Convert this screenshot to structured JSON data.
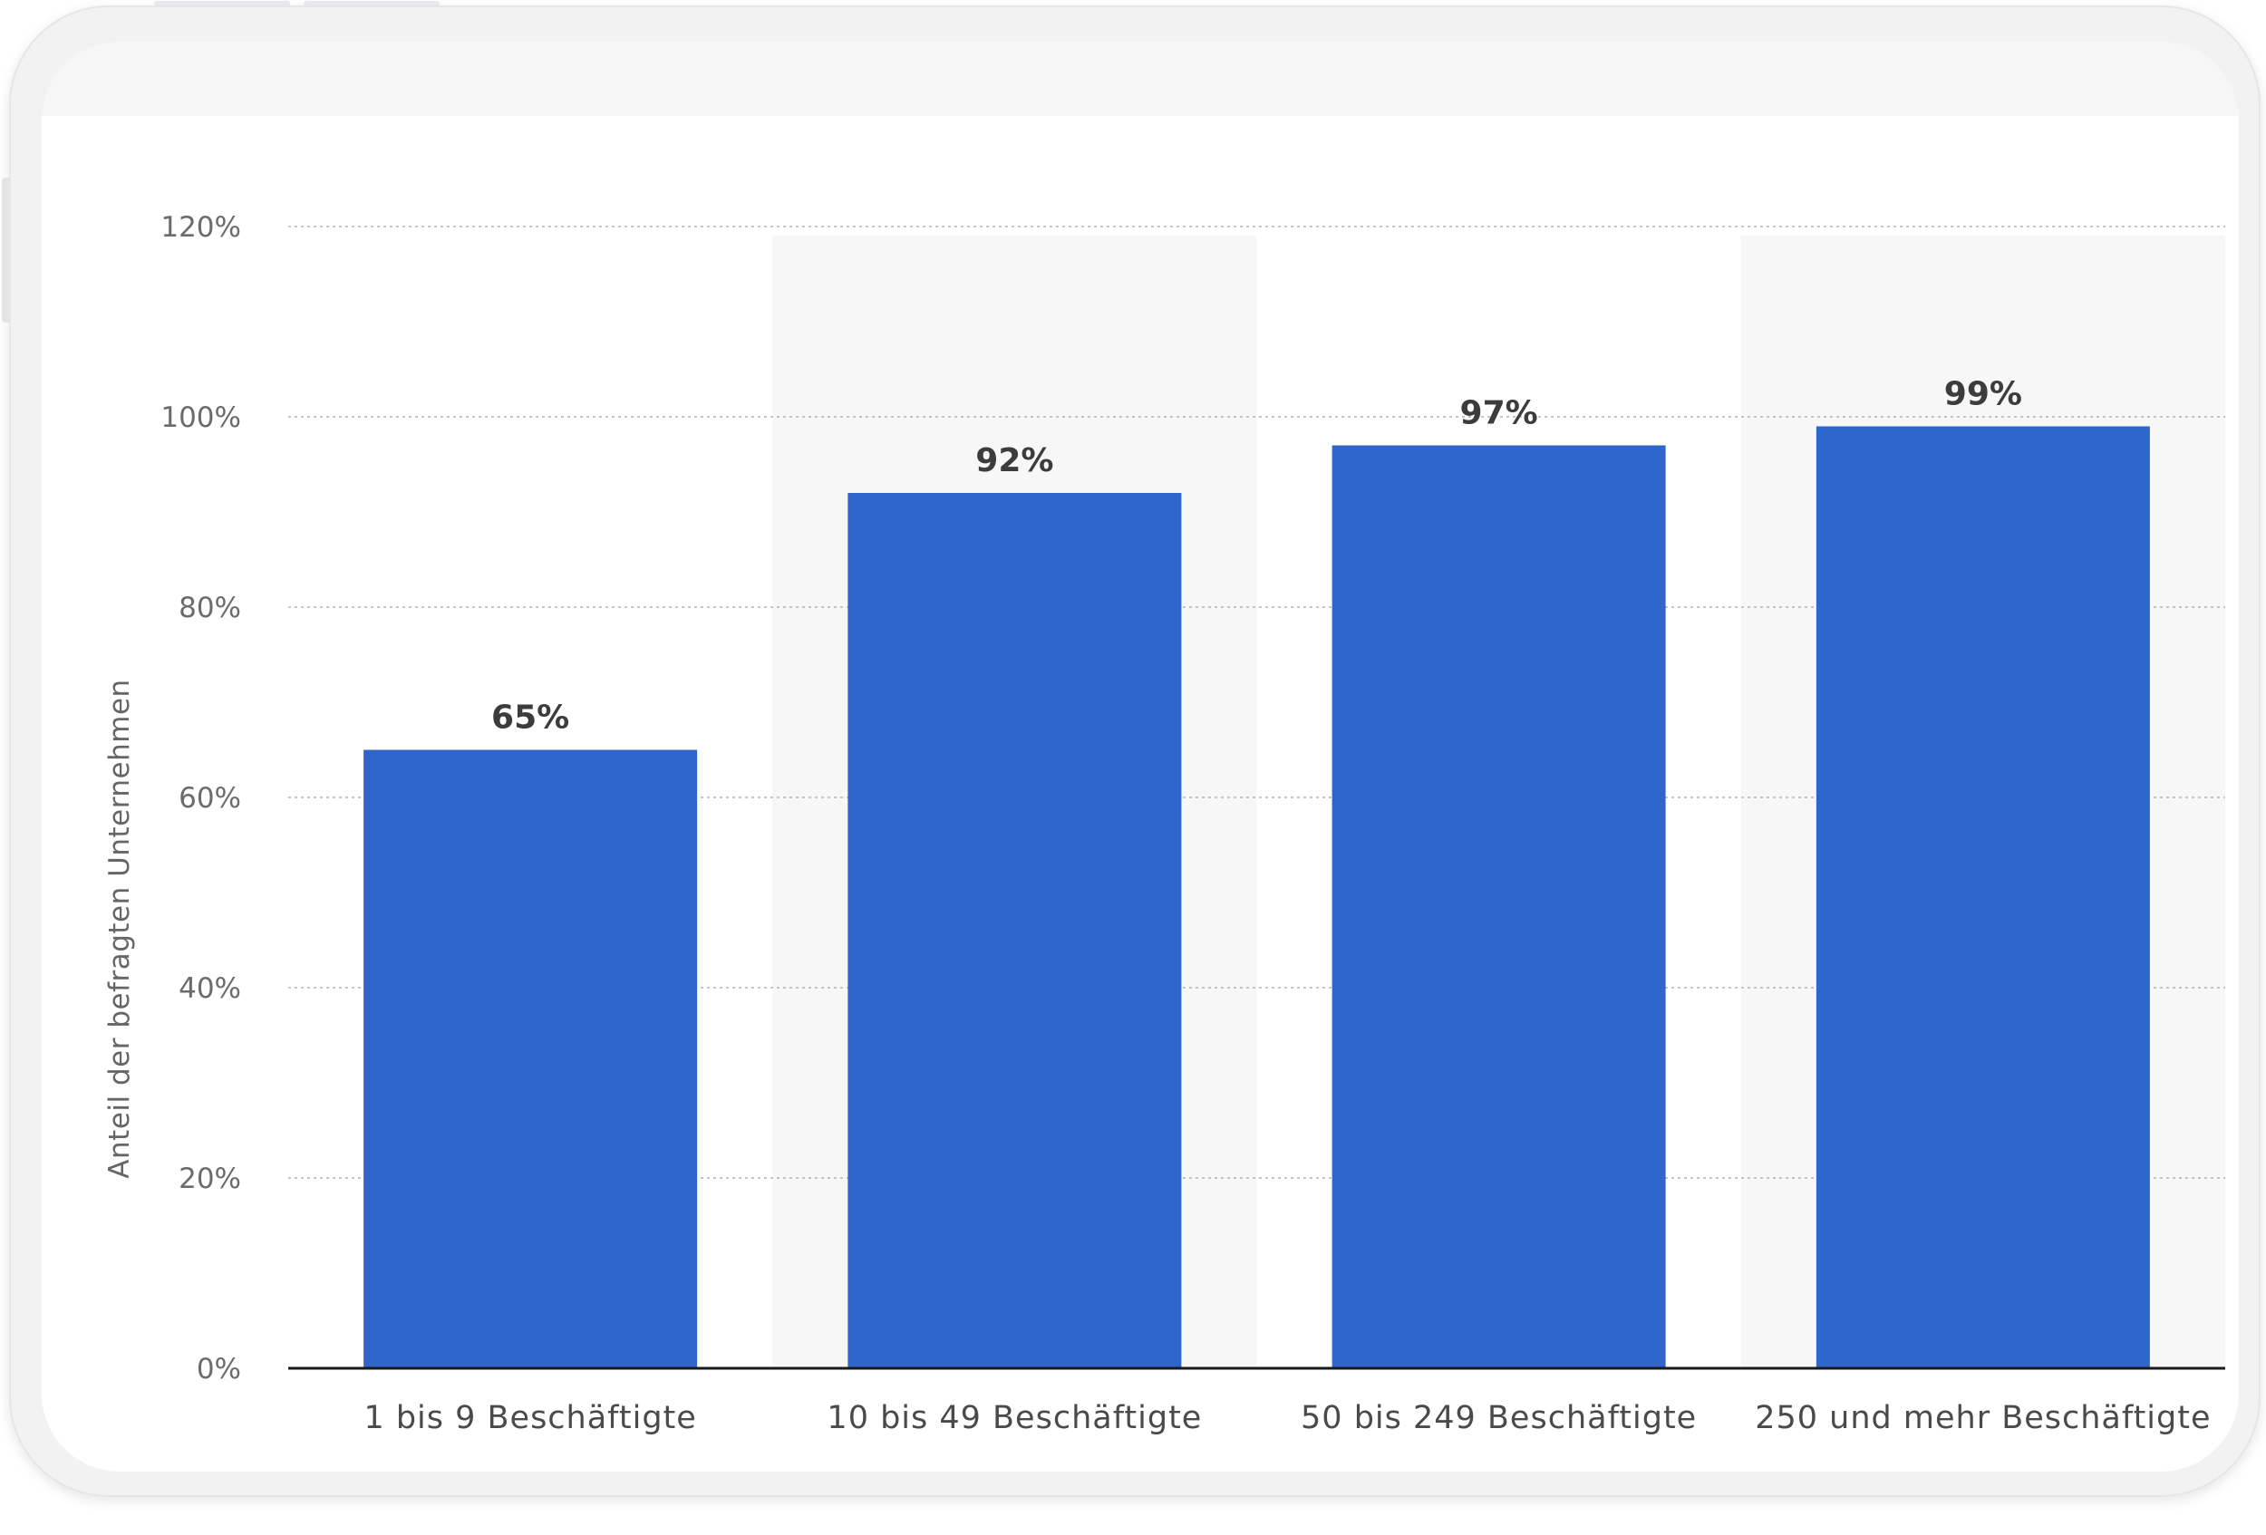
{
  "chart_data": {
    "type": "bar",
    "categories": [
      "1 bis 9 Beschäftigte",
      "10 bis 49 Beschäftigte",
      "50 bis 249 Beschäftigte",
      "250 und mehr Beschäftigte"
    ],
    "values": [
      65,
      92,
      97,
      99
    ],
    "value_labels": [
      "65%",
      "92%",
      "97%",
      "99%"
    ],
    "ylabel": "Anteil der befragten Unternehmen",
    "xlabel": "",
    "ylim": [
      0,
      120
    ],
    "yticks": [
      0,
      20,
      40,
      60,
      80,
      100,
      120
    ],
    "ytick_labels": [
      "0%",
      "20%",
      "40%",
      "60%",
      "80%",
      "100%",
      "120%"
    ],
    "grid": true,
    "bar_color": "#2e66cc",
    "alt_band_color": "#f7f7f8"
  }
}
